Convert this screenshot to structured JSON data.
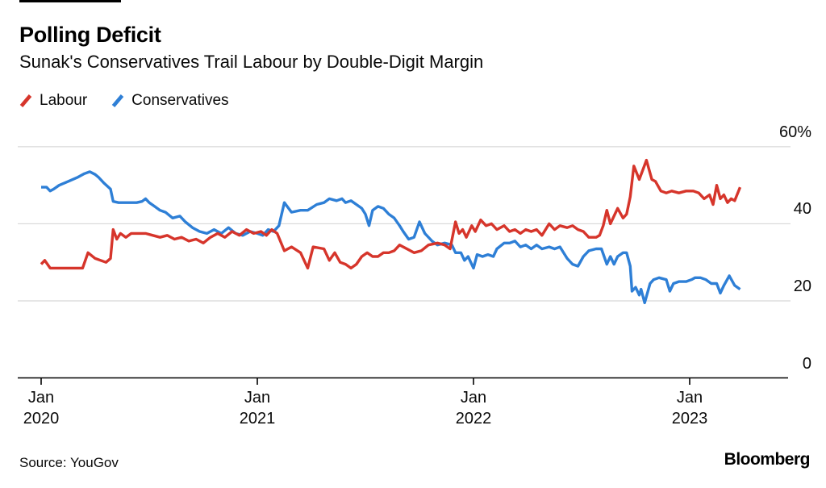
{
  "header": {
    "title": "Polling Deficit",
    "subtitle": "Sunak's Conservatives Trail Labour by Double-Digit Margin"
  },
  "legend": [
    {
      "label": "Labour",
      "color": "#d6352b"
    },
    {
      "label": "Conservatives",
      "color": "#2e7fd6"
    }
  ],
  "footer": {
    "source": "Source: YouGov",
    "brand": "Bloomberg"
  },
  "colors": {
    "labour": "#d6352b",
    "conservatives": "#2e7fd6",
    "grid": "#d8d8d8",
    "axis": "#000000"
  },
  "chart_data": {
    "type": "line",
    "title": "Polling Deficit",
    "subtitle": "Sunak's Conservatives Trail Labour by Double-Digit Margin",
    "x_unit": "months since Jan 2020",
    "x_range_label": "Jan 2020 – Mar 2023",
    "ylim": [
      0,
      60
    ],
    "y_unit": "%",
    "grid": true,
    "legend_position": "top-left",
    "y_ticks": [
      {
        "value": 60,
        "label": "60%"
      },
      {
        "value": 40,
        "label": "40"
      },
      {
        "value": 20,
        "label": "20"
      },
      {
        "value": 0,
        "label": "0"
      }
    ],
    "x_ticks": [
      {
        "t": 0,
        "line1": "Jan",
        "line2": "2020"
      },
      {
        "t": 12,
        "line1": "Jan",
        "line2": "2021"
      },
      {
        "t": 24,
        "line1": "Jan",
        "line2": "2022"
      },
      {
        "t": 36,
        "line1": "Jan",
        "line2": "2023"
      }
    ],
    "series": [
      {
        "name": "Labour",
        "color": "#d6352b",
        "points": [
          [
            0,
            29.5
          ],
          [
            0.2,
            30.5
          ],
          [
            0.5,
            28.5
          ],
          [
            1,
            28.5
          ],
          [
            1.5,
            28.5
          ],
          [
            2,
            28.5
          ],
          [
            2.3,
            28.5
          ],
          [
            2.6,
            32.5
          ],
          [
            3,
            31
          ],
          [
            3.3,
            30.5
          ],
          [
            3.6,
            30
          ],
          [
            3.85,
            31
          ],
          [
            4,
            38.5
          ],
          [
            4.2,
            36
          ],
          [
            4.4,
            37.5
          ],
          [
            4.7,
            36.5
          ],
          [
            5,
            37.5
          ],
          [
            5.4,
            37.5
          ],
          [
            5.8,
            37.5
          ],
          [
            6.2,
            37
          ],
          [
            6.6,
            36.5
          ],
          [
            7,
            37
          ],
          [
            7.4,
            36
          ],
          [
            7.8,
            36.5
          ],
          [
            8.2,
            35.5
          ],
          [
            8.6,
            36
          ],
          [
            9,
            35
          ],
          [
            9.4,
            36.5
          ],
          [
            9.8,
            37.5
          ],
          [
            10.2,
            36.5
          ],
          [
            10.6,
            38
          ],
          [
            11,
            37
          ],
          [
            11.4,
            38.5
          ],
          [
            11.8,
            37.5
          ],
          [
            12.2,
            38
          ],
          [
            12.5,
            37
          ],
          [
            12.8,
            38.5
          ],
          [
            13.1,
            37.5
          ],
          [
            13.5,
            33
          ],
          [
            13.9,
            34
          ],
          [
            14.4,
            32.5
          ],
          [
            14.8,
            28.5
          ],
          [
            15.1,
            34
          ],
          [
            15.7,
            33.5
          ],
          [
            16,
            30.5
          ],
          [
            16.3,
            32.5
          ],
          [
            16.6,
            30
          ],
          [
            16.9,
            29.5
          ],
          [
            17.2,
            28.5
          ],
          [
            17.5,
            29.5
          ],
          [
            17.8,
            31.5
          ],
          [
            18.1,
            32.5
          ],
          [
            18.4,
            31.5
          ],
          [
            18.7,
            31.5
          ],
          [
            19,
            32.5
          ],
          [
            19.3,
            32.5
          ],
          [
            19.6,
            33
          ],
          [
            19.9,
            34.5
          ],
          [
            20.3,
            33.5
          ],
          [
            20.7,
            32.5
          ],
          [
            21.1,
            33
          ],
          [
            21.5,
            34.5
          ],
          [
            22,
            35
          ],
          [
            22.4,
            34.5
          ],
          [
            22.7,
            33.5
          ],
          [
            23,
            40.5
          ],
          [
            23.2,
            37.5
          ],
          [
            23.4,
            38.5
          ],
          [
            23.6,
            36.5
          ],
          [
            23.9,
            39.5
          ],
          [
            24.1,
            38
          ],
          [
            24.4,
            41
          ],
          [
            24.7,
            39.5
          ],
          [
            25,
            40
          ],
          [
            25.3,
            38.5
          ],
          [
            25.7,
            39.5
          ],
          [
            26,
            38
          ],
          [
            26.3,
            38.5
          ],
          [
            26.6,
            37.5
          ],
          [
            26.9,
            38.5
          ],
          [
            27.2,
            38
          ],
          [
            27.5,
            38.5
          ],
          [
            27.8,
            37
          ],
          [
            28.2,
            40
          ],
          [
            28.5,
            38.5
          ],
          [
            28.8,
            39.5
          ],
          [
            29.2,
            39
          ],
          [
            29.5,
            39.5
          ],
          [
            29.8,
            38.5
          ],
          [
            30.1,
            38
          ],
          [
            30.4,
            36.5
          ],
          [
            30.8,
            36.5
          ],
          [
            31,
            37
          ],
          [
            31.2,
            39.5
          ],
          [
            31.4,
            43.5
          ],
          [
            31.6,
            40
          ],
          [
            31.8,
            42
          ],
          [
            32,
            44
          ],
          [
            32.3,
            41.5
          ],
          [
            32.5,
            42.5
          ],
          [
            32.7,
            47
          ],
          [
            32.9,
            55
          ],
          [
            33.2,
            51.5
          ],
          [
            33.6,
            56.5
          ],
          [
            33.9,
            51.5
          ],
          [
            34.1,
            51
          ],
          [
            34.4,
            48.5
          ],
          [
            34.7,
            48
          ],
          [
            35,
            48.5
          ],
          [
            35.4,
            48
          ],
          [
            35.8,
            48.5
          ],
          [
            36.2,
            48.5
          ],
          [
            36.5,
            48
          ],
          [
            36.8,
            46.5
          ],
          [
            37.1,
            47.5
          ],
          [
            37.3,
            45
          ],
          [
            37.5,
            50
          ],
          [
            37.7,
            46.5
          ],
          [
            37.9,
            47.5
          ],
          [
            38.1,
            45.5
          ],
          [
            38.3,
            46.5
          ],
          [
            38.5,
            46
          ],
          [
            38.8,
            49.5
          ]
        ]
      },
      {
        "name": "Conservatives",
        "color": "#2e7fd6",
        "points": [
          [
            0,
            49.5
          ],
          [
            0.3,
            49.5
          ],
          [
            0.5,
            48.5
          ],
          [
            0.7,
            49
          ],
          [
            1,
            50
          ],
          [
            1.5,
            51
          ],
          [
            2,
            52
          ],
          [
            2.4,
            53
          ],
          [
            2.7,
            53.5
          ],
          [
            3,
            52.8
          ],
          [
            3.2,
            52
          ],
          [
            3.5,
            50.5
          ],
          [
            3.85,
            49
          ],
          [
            4,
            45.8
          ],
          [
            4.3,
            45.5
          ],
          [
            4.8,
            45.5
          ],
          [
            5.3,
            45.5
          ],
          [
            5.6,
            45.8
          ],
          [
            5.8,
            46.5
          ],
          [
            6,
            45.5
          ],
          [
            6.3,
            44.5
          ],
          [
            6.6,
            43.5
          ],
          [
            6.9,
            43
          ],
          [
            7.3,
            41.5
          ],
          [
            7.7,
            42
          ],
          [
            8,
            40.5
          ],
          [
            8.4,
            39
          ],
          [
            8.8,
            38
          ],
          [
            9.2,
            37.5
          ],
          [
            9.6,
            38.5
          ],
          [
            10,
            37.5
          ],
          [
            10.4,
            39
          ],
          [
            10.8,
            37.5
          ],
          [
            11.2,
            37
          ],
          [
            11.6,
            38
          ],
          [
            12,
            37.5
          ],
          [
            12.3,
            37
          ],
          [
            12.6,
            38.5
          ],
          [
            12.9,
            38
          ],
          [
            13.2,
            39.5
          ],
          [
            13.5,
            45.5
          ],
          [
            13.9,
            43
          ],
          [
            14.4,
            43.5
          ],
          [
            14.8,
            43.5
          ],
          [
            15.3,
            45
          ],
          [
            15.7,
            45.5
          ],
          [
            16,
            46.5
          ],
          [
            16.4,
            46
          ],
          [
            16.7,
            46.5
          ],
          [
            16.9,
            45.5
          ],
          [
            17.2,
            46
          ],
          [
            17.5,
            45
          ],
          [
            17.8,
            44
          ],
          [
            18,
            42.5
          ],
          [
            18.2,
            39.5
          ],
          [
            18.4,
            43.5
          ],
          [
            18.7,
            44.5
          ],
          [
            19,
            44
          ],
          [
            19.3,
            42.5
          ],
          [
            19.6,
            41.5
          ],
          [
            19.9,
            39.5
          ],
          [
            20.1,
            38
          ],
          [
            20.4,
            36
          ],
          [
            20.7,
            36.5
          ],
          [
            21,
            40.5
          ],
          [
            21.3,
            37.5
          ],
          [
            21.7,
            35.5
          ],
          [
            22,
            34.5
          ],
          [
            22.4,
            35
          ],
          [
            22.8,
            34.5
          ],
          [
            23,
            32.5
          ],
          [
            23.3,
            32.5
          ],
          [
            23.5,
            30.5
          ],
          [
            23.7,
            31.5
          ],
          [
            24,
            28.5
          ],
          [
            24.2,
            32
          ],
          [
            24.5,
            31.5
          ],
          [
            24.8,
            32
          ],
          [
            25.1,
            31.5
          ],
          [
            25.3,
            33.5
          ],
          [
            25.7,
            35
          ],
          [
            26,
            35
          ],
          [
            26.3,
            35.5
          ],
          [
            26.6,
            34
          ],
          [
            26.9,
            34.5
          ],
          [
            27.2,
            33.5
          ],
          [
            27.5,
            34.5
          ],
          [
            27.8,
            33.5
          ],
          [
            28.2,
            34
          ],
          [
            28.5,
            33.5
          ],
          [
            28.8,
            34
          ],
          [
            29.2,
            31
          ],
          [
            29.5,
            29.5
          ],
          [
            29.8,
            29
          ],
          [
            30.1,
            31.5
          ],
          [
            30.4,
            33
          ],
          [
            30.8,
            33.5
          ],
          [
            31.1,
            33.5
          ],
          [
            31.4,
            29.5
          ],
          [
            31.6,
            31.5
          ],
          [
            31.8,
            29.5
          ],
          [
            32,
            31.5
          ],
          [
            32.3,
            32.5
          ],
          [
            32.5,
            32.5
          ],
          [
            32.7,
            29
          ],
          [
            32.8,
            22.5
          ],
          [
            33,
            23.5
          ],
          [
            33.2,
            21.5
          ],
          [
            33.3,
            23
          ],
          [
            33.5,
            19.5
          ],
          [
            33.8,
            24.5
          ],
          [
            34,
            25.5
          ],
          [
            34.3,
            26
          ],
          [
            34.7,
            25.5
          ],
          [
            34.9,
            22.5
          ],
          [
            35.1,
            24.5
          ],
          [
            35.4,
            25
          ],
          [
            35.8,
            25
          ],
          [
            36.1,
            25.5
          ],
          [
            36.3,
            26
          ],
          [
            36.6,
            26
          ],
          [
            36.9,
            25.5
          ],
          [
            37.2,
            24.5
          ],
          [
            37.5,
            24.5
          ],
          [
            37.7,
            22
          ],
          [
            37.9,
            24
          ],
          [
            38.2,
            26.5
          ],
          [
            38.5,
            24
          ],
          [
            38.8,
            23
          ]
        ]
      }
    ]
  }
}
